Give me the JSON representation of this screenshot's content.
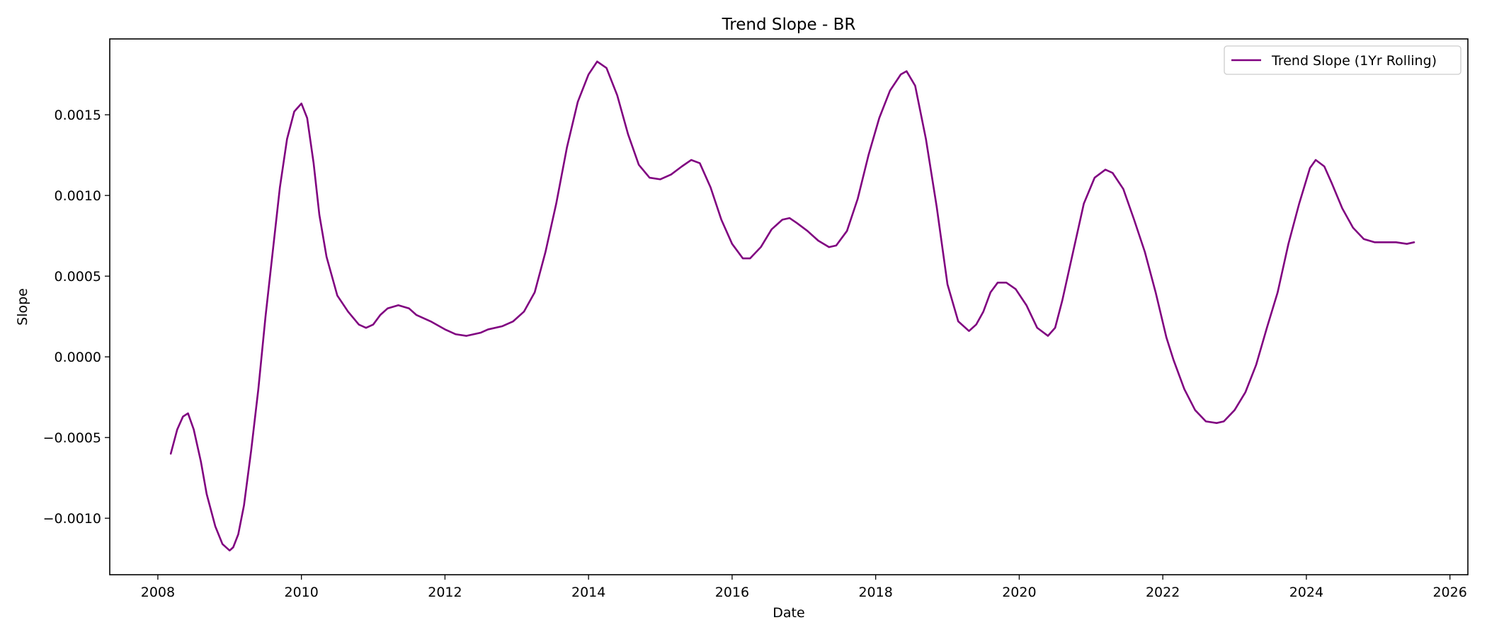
{
  "chart_data": {
    "type": "line",
    "title": "Trend Slope - BR",
    "xlabel": "Date",
    "ylabel": "Slope",
    "xlim": [
      2007.33,
      2026.25
    ],
    "ylim": [
      -0.00135,
      0.00197
    ],
    "x_ticks": [
      2008,
      2010,
      2012,
      2014,
      2016,
      2018,
      2020,
      2022,
      2024,
      2026
    ],
    "x_tick_labels": [
      "2008",
      "2010",
      "2012",
      "2014",
      "2016",
      "2018",
      "2020",
      "2022",
      "2024",
      "2026"
    ],
    "y_ticks": [
      -0.001,
      -0.0005,
      0.0,
      0.0005,
      0.001,
      0.0015
    ],
    "y_tick_labels": [
      "−0.0010",
      "−0.0005",
      "0.0000",
      "0.0005",
      "0.0010",
      "0.0015"
    ],
    "grid": false,
    "legend": {
      "position": "top-right"
    },
    "series": [
      {
        "name": "Trend Slope (1Yr Rolling)",
        "color": "#800080",
        "x": [
          2008.18,
          2008.27,
          2008.35,
          2008.42,
          2008.5,
          2008.6,
          2008.68,
          2008.8,
          2008.9,
          2009.0,
          2009.05,
          2009.12,
          2009.2,
          2009.3,
          2009.4,
          2009.5,
          2009.6,
          2009.7,
          2009.8,
          2009.9,
          2010.0,
          2010.08,
          2010.17,
          2010.25,
          2010.35,
          2010.5,
          2010.65,
          2010.8,
          2010.9,
          2011.0,
          2011.1,
          2011.2,
          2011.35,
          2011.5,
          2011.6,
          2011.8,
          2012.0,
          2012.15,
          2012.3,
          2012.5,
          2012.6,
          2012.8,
          2012.95,
          2013.1,
          2013.25,
          2013.4,
          2013.55,
          2013.7,
          2013.85,
          2014.0,
          2014.12,
          2014.25,
          2014.4,
          2014.55,
          2014.7,
          2014.85,
          2015.0,
          2015.15,
          2015.3,
          2015.43,
          2015.55,
          2015.7,
          2015.85,
          2016.0,
          2016.15,
          2016.25,
          2016.4,
          2016.55,
          2016.7,
          2016.8,
          2016.9,
          2017.05,
          2017.2,
          2017.35,
          2017.45,
          2017.6,
          2017.75,
          2017.9,
          2018.05,
          2018.2,
          2018.35,
          2018.43,
          2018.55,
          2018.7,
          2018.85,
          2019.0,
          2019.15,
          2019.3,
          2019.4,
          2019.5,
          2019.6,
          2019.7,
          2019.82,
          2019.95,
          2020.1,
          2020.25,
          2020.4,
          2020.5,
          2020.6,
          2020.75,
          2020.9,
          2021.05,
          2021.2,
          2021.3,
          2021.45,
          2021.6,
          2021.75,
          2021.9,
          2022.05,
          2022.15,
          2022.3,
          2022.45,
          2022.6,
          2022.75,
          2022.85,
          2023.0,
          2023.15,
          2023.3,
          2023.45,
          2023.6,
          2023.75,
          2023.9,
          2024.05,
          2024.13,
          2024.25,
          2024.35,
          2024.5,
          2024.65,
          2024.8,
          2024.95,
          2025.1,
          2025.25,
          2025.4,
          2025.5
        ],
        "y": [
          -0.0006,
          -0.00045,
          -0.00037,
          -0.00035,
          -0.00045,
          -0.00065,
          -0.00085,
          -0.00105,
          -0.00116,
          -0.0012,
          -0.00118,
          -0.0011,
          -0.00092,
          -0.00058,
          -0.0002,
          0.00025,
          0.00065,
          0.00105,
          0.00135,
          0.00152,
          0.00157,
          0.00148,
          0.0012,
          0.00088,
          0.00062,
          0.00038,
          0.00028,
          0.0002,
          0.00018,
          0.0002,
          0.00026,
          0.0003,
          0.00032,
          0.0003,
          0.00026,
          0.00022,
          0.00017,
          0.00014,
          0.00013,
          0.00015,
          0.00017,
          0.00019,
          0.00022,
          0.00028,
          0.0004,
          0.00065,
          0.00095,
          0.0013,
          0.00158,
          0.00175,
          0.00183,
          0.00179,
          0.00162,
          0.00138,
          0.00119,
          0.00111,
          0.0011,
          0.00113,
          0.00118,
          0.00122,
          0.0012,
          0.00105,
          0.00085,
          0.0007,
          0.00061,
          0.00061,
          0.00068,
          0.00079,
          0.00085,
          0.00086,
          0.00083,
          0.00078,
          0.00072,
          0.00068,
          0.00069,
          0.00078,
          0.00098,
          0.00125,
          0.00148,
          0.00165,
          0.00175,
          0.00177,
          0.00168,
          0.00135,
          0.00093,
          0.00045,
          0.00022,
          0.00016,
          0.0002,
          0.00028,
          0.0004,
          0.00046,
          0.00046,
          0.00042,
          0.00032,
          0.00018,
          0.00013,
          0.00018,
          0.00035,
          0.00065,
          0.00095,
          0.00111,
          0.00116,
          0.00114,
          0.00104,
          0.00085,
          0.00065,
          0.0004,
          0.00012,
          -2e-05,
          -0.0002,
          -0.00033,
          -0.0004,
          -0.00041,
          -0.0004,
          -0.00033,
          -0.00022,
          -5e-05,
          0.00018,
          0.0004,
          0.0007,
          0.00095,
          0.00117,
          0.00122,
          0.00118,
          0.00108,
          0.00092,
          0.0008,
          0.00073,
          0.00071,
          0.00071,
          0.00071,
          0.0007,
          0.00071
        ]
      }
    ]
  }
}
